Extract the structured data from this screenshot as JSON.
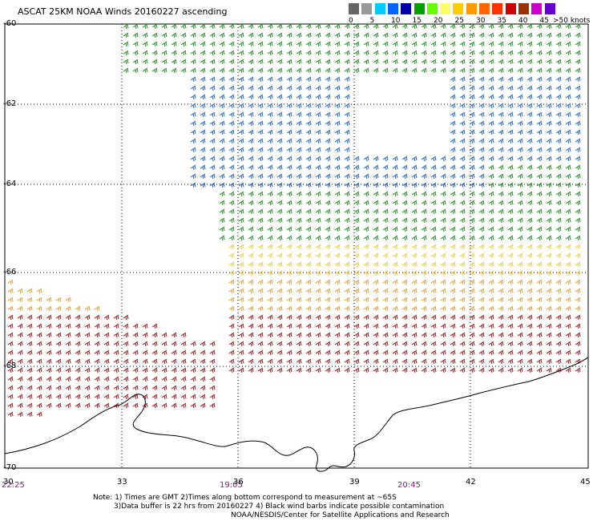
{
  "title": "ASCAT 25KM NOAA Winds 20160227 ascending",
  "lat_labels": [
    "-60",
    "-62",
    "-64",
    "-66",
    "-68",
    "-70"
  ],
  "lon_labels": [
    "30",
    "33",
    "36",
    "39",
    "42",
    "45"
  ],
  "time_labels": [
    "22:25",
    "19:05",
    "20:45"
  ],
  "legend": {
    "labels": [
      "0",
      "5",
      "10",
      "15",
      "20",
      "25",
      "30",
      "35",
      "40",
      "45"
    ],
    "units": ">50 knots",
    "colors": [
      "#666666",
      "#999999",
      "#00ccff",
      "#0066ff",
      "#0000aa",
      "#00a000",
      "#66ff00",
      "#ffff66",
      "#ffcc00",
      "#ff9900",
      "#ff6600",
      "#ff3300",
      "#cc0000",
      "#993300",
      "#cc00cc",
      "#6600cc"
    ]
  },
  "notes": [
    "Note: 1) Times are GMT 2)Times along bottom correspond to measurement at ~65S",
    "3)Data buffer is 22 hrs from 20160227 4) Black wind barbs indicate possible contamination",
    "NOAA/NESDIS/Center for Satellite Applications and Research"
  ]
}
